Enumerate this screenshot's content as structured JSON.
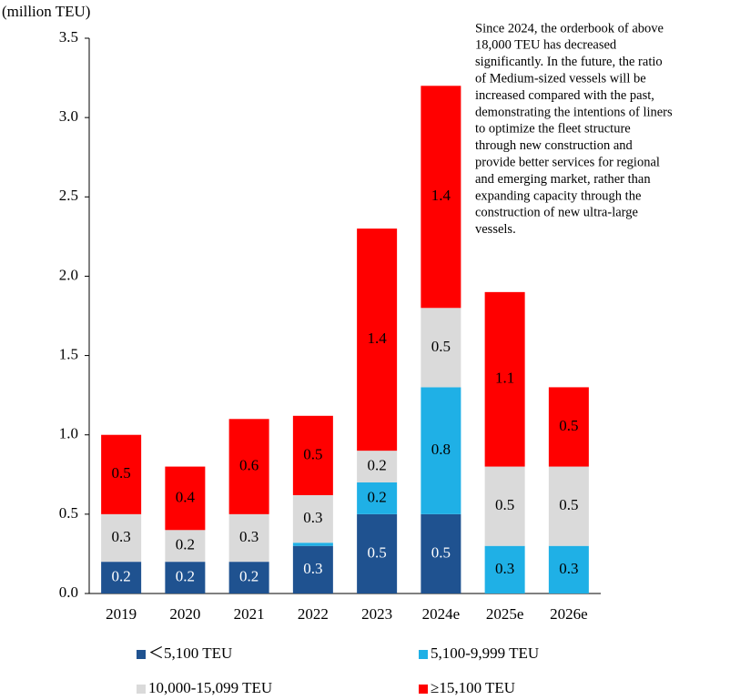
{
  "chart_data": {
    "type": "stacked_bar",
    "y_label": "(million TEU)",
    "categories": [
      "2019",
      "2020",
      "2021",
      "2022",
      "2023",
      "2024e",
      "2025e",
      "2026e"
    ],
    "series": [
      {
        "name": "＜5,100 TEU",
        "color": "#1f5290",
        "values": [
          0.2,
          0.2,
          0.2,
          0.3,
          0.5,
          0.5,
          0,
          0
        ],
        "value_labels": [
          "0.2",
          "0.2",
          "0.2",
          "0.3",
          "0.5",
          "0.5",
          null,
          null
        ]
      },
      {
        "name": "5,100-9,999 TEU",
        "color": "#1fb0e6",
        "values": [
          0,
          0,
          0,
          0.02,
          0.2,
          0.8,
          0.3,
          0.3
        ],
        "value_labels": [
          null,
          null,
          null,
          null,
          "0.2",
          "0.8",
          "0.3",
          "0.3"
        ]
      },
      {
        "name": "10,000-15,099 TEU",
        "color": "#dadada",
        "values": [
          0.3,
          0.2,
          0.3,
          0.3,
          0.2,
          0.5,
          0.5,
          0.5
        ],
        "value_labels": [
          "0.3",
          "0.2",
          "0.3",
          "0.3",
          "0.2",
          "0.5",
          "0.5",
          "0.5"
        ]
      },
      {
        "name": "≥15,100 TEU",
        "color": "#ff0000",
        "values": [
          0.5,
          0.4,
          0.6,
          0.5,
          1.4,
          1.4,
          1.1,
          0.5
        ],
        "value_labels": [
          "0.5",
          "0.4",
          "0.6",
          "0.5",
          "1.4",
          "1.4",
          "1.1",
          "0.5"
        ]
      }
    ],
    "ylim": [
      0,
      3.5
    ],
    "yticks": [
      {
        "value": 0,
        "label": "0.0"
      },
      0.5,
      {
        "value": 1,
        "label": "1.0"
      },
      1.5,
      {
        "value": 2,
        "label": "2.0"
      },
      2.5,
      {
        "value": 3,
        "label": "3.0"
      },
      3.5
    ],
    "annotation": [
      "Since 2024, the orderbook of above",
      "18,000 TEU has decreased",
      "significantly. In the future, the ratio",
      "of  Medium-sized vessels will be",
      "increased  compared with the past,",
      "demonstrating the intentions of liners",
      "to optimize the fleet structure",
      "through new construction and",
      "provide better services for regional",
      "and emerging market, rather than",
      "expanding capacity through the",
      "construction of new ultra-large",
      "vessels."
    ]
  }
}
